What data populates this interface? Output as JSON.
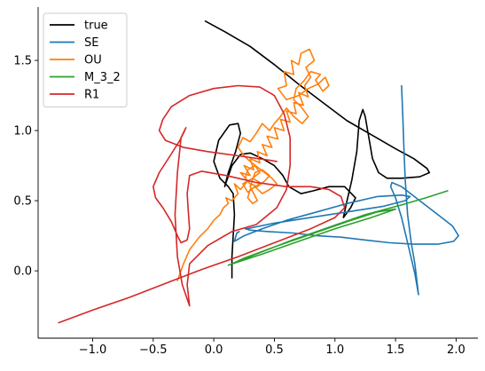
{
  "chart_data": {
    "type": "line",
    "title": "",
    "xlabel": "",
    "ylabel": "",
    "xlim": [
      -1.45,
      2.18
    ],
    "ylim": [
      -0.48,
      1.88
    ],
    "xticks": [
      -1.0,
      -0.5,
      0.0,
      0.5,
      1.0,
      1.5,
      2.0
    ],
    "xtick_labels": [
      "−1.0",
      "−0.5",
      "0.0",
      "0.5",
      "1.0",
      "1.5",
      "2.0"
    ],
    "yticks": [
      0.0,
      0.5,
      1.0,
      1.5
    ],
    "ytick_labels": [
      "0.0",
      "0.5",
      "1.0",
      "1.5"
    ],
    "grid": false,
    "legend_position": "top-left",
    "series": [
      {
        "name": "true",
        "color": "#000000",
        "points": [
          [
            -0.07,
            1.78
          ],
          [
            0.1,
            1.7
          ],
          [
            0.3,
            1.6
          ],
          [
            0.5,
            1.47
          ],
          [
            0.7,
            1.33
          ],
          [
            0.9,
            1.2
          ],
          [
            1.1,
            1.07
          ],
          [
            1.3,
            0.97
          ],
          [
            1.5,
            0.87
          ],
          [
            1.65,
            0.8
          ],
          [
            1.76,
            0.73
          ],
          [
            1.78,
            0.7
          ],
          [
            1.7,
            0.67
          ],
          [
            1.55,
            0.66
          ],
          [
            1.43,
            0.66
          ],
          [
            1.36,
            0.7
          ],
          [
            1.31,
            0.8
          ],
          [
            1.28,
            0.95
          ],
          [
            1.25,
            1.1
          ],
          [
            1.23,
            1.15
          ],
          [
            1.2,
            1.07
          ],
          [
            1.18,
            0.85
          ],
          [
            1.14,
            0.65
          ],
          [
            1.1,
            0.5
          ],
          [
            1.07,
            0.38
          ],
          [
            1.13,
            0.45
          ],
          [
            1.17,
            0.52
          ],
          [
            1.08,
            0.6
          ],
          [
            0.95,
            0.6
          ],
          [
            0.82,
            0.57
          ],
          [
            0.72,
            0.55
          ],
          [
            0.62,
            0.6
          ],
          [
            0.57,
            0.68
          ],
          [
            0.5,
            0.75
          ],
          [
            0.4,
            0.8
          ],
          [
            0.3,
            0.84
          ],
          [
            0.22,
            0.83
          ],
          [
            0.15,
            0.75
          ],
          [
            0.09,
            0.6
          ],
          [
            0.12,
            0.7
          ],
          [
            0.18,
            0.85
          ],
          [
            0.22,
            0.98
          ],
          [
            0.2,
            1.05
          ],
          [
            0.13,
            1.04
          ],
          [
            0.04,
            0.93
          ],
          [
            0.0,
            0.78
          ],
          [
            0.05,
            0.66
          ],
          [
            0.12,
            0.6
          ],
          [
            0.16,
            0.55
          ],
          [
            0.17,
            0.4
          ],
          [
            0.16,
            0.25
          ],
          [
            0.15,
            0.1
          ],
          [
            0.15,
            -0.05
          ]
        ]
      },
      {
        "name": "SE",
        "color": "#1f77b4",
        "points": [
          [
            1.55,
            1.32
          ],
          [
            1.56,
            1.1
          ],
          [
            1.57,
            0.85
          ],
          [
            1.58,
            0.65
          ],
          [
            1.6,
            0.4
          ],
          [
            1.63,
            0.2
          ],
          [
            1.66,
            0.05
          ],
          [
            1.68,
            -0.1
          ],
          [
            1.69,
            -0.17
          ],
          [
            1.66,
            -0.02
          ],
          [
            1.6,
            0.2
          ],
          [
            1.55,
            0.38
          ],
          [
            1.5,
            0.52
          ],
          [
            1.46,
            0.6
          ],
          [
            1.47,
            0.63
          ],
          [
            1.55,
            0.6
          ],
          [
            1.7,
            0.5
          ],
          [
            1.85,
            0.4
          ],
          [
            1.97,
            0.32
          ],
          [
            2.02,
            0.25
          ],
          [
            1.98,
            0.21
          ],
          [
            1.85,
            0.19
          ],
          [
            1.65,
            0.19
          ],
          [
            1.45,
            0.2
          ],
          [
            1.25,
            0.22
          ],
          [
            1.05,
            0.24
          ],
          [
            0.85,
            0.25
          ],
          [
            0.65,
            0.27
          ],
          [
            0.45,
            0.28
          ],
          [
            0.3,
            0.29
          ],
          [
            0.26,
            0.3
          ],
          [
            0.28,
            0.3
          ],
          [
            0.33,
            0.31
          ],
          [
            0.5,
            0.34
          ],
          [
            0.8,
            0.38
          ],
          [
            1.1,
            0.42
          ],
          [
            1.4,
            0.46
          ],
          [
            1.58,
            0.5
          ],
          [
            1.62,
            0.53
          ],
          [
            1.55,
            0.54
          ],
          [
            1.35,
            0.53
          ],
          [
            1.1,
            0.48
          ],
          [
            0.85,
            0.42
          ],
          [
            0.6,
            0.36
          ],
          [
            0.4,
            0.3
          ],
          [
            0.25,
            0.25
          ],
          [
            0.17,
            0.21
          ],
          [
            0.19,
            0.27
          ],
          [
            0.21,
            0.28
          ]
        ]
      },
      {
        "name": "OU",
        "color": "#ff7f0e",
        "points": [
          [
            -0.3,
            -0.07
          ],
          [
            -0.25,
            0.05
          ],
          [
            -0.2,
            0.15
          ],
          [
            -0.12,
            0.24
          ],
          [
            -0.05,
            0.3
          ],
          [
            0.0,
            0.36
          ],
          [
            0.05,
            0.4
          ],
          [
            0.08,
            0.45
          ],
          [
            0.12,
            0.48
          ],
          [
            0.1,
            0.52
          ],
          [
            0.15,
            0.5
          ],
          [
            0.2,
            0.55
          ],
          [
            0.17,
            0.62
          ],
          [
            0.22,
            0.58
          ],
          [
            0.28,
            0.64
          ],
          [
            0.22,
            0.7
          ],
          [
            0.3,
            0.68
          ],
          [
            0.25,
            0.75
          ],
          [
            0.33,
            0.72
          ],
          [
            0.3,
            0.8
          ],
          [
            0.38,
            0.77
          ],
          [
            0.36,
            0.85
          ],
          [
            0.44,
            0.82
          ],
          [
            0.4,
            0.9
          ],
          [
            0.48,
            0.88
          ],
          [
            0.44,
            0.96
          ],
          [
            0.53,
            0.94
          ],
          [
            0.5,
            1.02
          ],
          [
            0.58,
            1.0
          ],
          [
            0.55,
            1.08
          ],
          [
            0.63,
            1.06
          ],
          [
            0.6,
            1.14
          ],
          [
            0.68,
            1.12
          ],
          [
            0.66,
            1.2
          ],
          [
            0.74,
            1.18
          ],
          [
            0.7,
            1.27
          ],
          [
            0.78,
            1.24
          ],
          [
            0.75,
            1.32
          ],
          [
            0.8,
            1.38
          ],
          [
            0.76,
            1.45
          ],
          [
            0.83,
            1.5
          ],
          [
            0.79,
            1.58
          ],
          [
            0.72,
            1.55
          ],
          [
            0.7,
            1.47
          ],
          [
            0.64,
            1.5
          ],
          [
            0.66,
            1.4
          ],
          [
            0.58,
            1.42
          ],
          [
            0.6,
            1.32
          ],
          [
            0.53,
            1.3
          ],
          [
            0.6,
            1.22
          ],
          [
            0.7,
            1.25
          ],
          [
            0.78,
            1.3
          ],
          [
            0.86,
            1.33
          ],
          [
            0.92,
            1.38
          ],
          [
            0.95,
            1.32
          ],
          [
            0.9,
            1.28
          ],
          [
            0.84,
            1.36
          ],
          [
            0.88,
            1.4
          ],
          [
            0.8,
            1.42
          ],
          [
            0.74,
            1.35
          ],
          [
            0.68,
            1.3
          ],
          [
            0.66,
            1.22
          ],
          [
            0.72,
            1.17
          ],
          [
            0.78,
            1.1
          ],
          [
            0.73,
            1.05
          ],
          [
            0.66,
            1.1
          ],
          [
            0.6,
            1.16
          ],
          [
            0.55,
            1.1
          ],
          [
            0.5,
            1.05
          ],
          [
            0.46,
            1.0
          ],
          [
            0.4,
            1.05
          ],
          [
            0.35,
            0.98
          ],
          [
            0.3,
            0.92
          ],
          [
            0.24,
            0.95
          ],
          [
            0.2,
            0.88
          ],
          [
            0.25,
            0.82
          ],
          [
            0.3,
            0.78
          ],
          [
            0.36,
            0.74
          ],
          [
            0.42,
            0.7
          ],
          [
            0.48,
            0.66
          ],
          [
            0.52,
            0.62
          ],
          [
            0.46,
            0.58
          ],
          [
            0.4,
            0.55
          ],
          [
            0.34,
            0.6
          ],
          [
            0.28,
            0.56
          ],
          [
            0.24,
            0.62
          ],
          [
            0.32,
            0.66
          ],
          [
            0.38,
            0.7
          ],
          [
            0.34,
            0.75
          ],
          [
            0.28,
            0.72
          ],
          [
            0.26,
            0.66
          ],
          [
            0.3,
            0.62
          ],
          [
            0.36,
            0.6
          ],
          [
            0.42,
            0.64
          ],
          [
            0.46,
            0.68
          ],
          [
            0.4,
            0.72
          ],
          [
            0.34,
            0.7
          ],
          [
            0.3,
            0.6
          ],
          [
            0.33,
            0.55
          ],
          [
            0.36,
            0.5
          ],
          [
            0.32,
            0.48
          ],
          [
            0.28,
            0.52
          ],
          [
            0.3,
            0.58
          ],
          [
            0.35,
            0.6
          ],
          [
            0.38,
            0.63
          ],
          [
            0.32,
            0.66
          ]
        ]
      },
      {
        "name": "M_3_2",
        "color": "#2ca02c",
        "points": [
          [
            0.12,
            0.04
          ],
          [
            0.4,
            0.12
          ],
          [
            0.7,
            0.21
          ],
          [
            1.0,
            0.3
          ],
          [
            1.3,
            0.38
          ],
          [
            1.5,
            0.44
          ],
          [
            1.35,
            0.42
          ],
          [
            1.1,
            0.35
          ],
          [
            0.8,
            0.26
          ],
          [
            0.5,
            0.17
          ],
          [
            0.25,
            0.09
          ],
          [
            0.15,
            0.05
          ],
          [
            0.35,
            0.12
          ],
          [
            0.65,
            0.22
          ],
          [
            0.95,
            0.31
          ],
          [
            1.25,
            0.4
          ],
          [
            1.55,
            0.47
          ],
          [
            1.75,
            0.52
          ],
          [
            1.93,
            0.57
          ]
        ]
      },
      {
        "name": "R1",
        "color": "#d62728",
        "points": [
          [
            -1.28,
            -0.37
          ],
          [
            -1.0,
            -0.28
          ],
          [
            -0.7,
            -0.19
          ],
          [
            -0.4,
            -0.09
          ],
          [
            -0.1,
            0.01
          ],
          [
            0.2,
            0.1
          ],
          [
            0.5,
            0.2
          ],
          [
            0.8,
            0.3
          ],
          [
            1.0,
            0.38
          ],
          [
            1.08,
            0.45
          ],
          [
            1.05,
            0.53
          ],
          [
            0.95,
            0.58
          ],
          [
            0.8,
            0.6
          ],
          [
            0.6,
            0.6
          ],
          [
            0.35,
            0.63
          ],
          [
            0.1,
            0.68
          ],
          [
            -0.1,
            0.71
          ],
          [
            -0.2,
            0.68
          ],
          [
            -0.22,
            0.55
          ],
          [
            -0.21,
            0.42
          ],
          [
            -0.2,
            0.3
          ],
          [
            -0.22,
            0.22
          ],
          [
            -0.27,
            0.2
          ],
          [
            -0.3,
            0.25
          ],
          [
            -0.35,
            0.35
          ],
          [
            -0.42,
            0.45
          ],
          [
            -0.48,
            0.52
          ],
          [
            -0.5,
            0.6
          ],
          [
            -0.45,
            0.7
          ],
          [
            -0.36,
            0.82
          ],
          [
            -0.28,
            0.93
          ],
          [
            -0.24,
            1.0
          ],
          [
            -0.23,
            1.02
          ],
          [
            -0.27,
            0.95
          ],
          [
            -0.3,
            0.7
          ],
          [
            -0.32,
            0.4
          ],
          [
            -0.3,
            0.1
          ],
          [
            -0.26,
            -0.1
          ],
          [
            -0.2,
            -0.25
          ],
          [
            -0.22,
            -0.1
          ],
          [
            -0.2,
            0.05
          ],
          [
            -0.05,
            0.18
          ],
          [
            0.15,
            0.28
          ],
          [
            0.35,
            0.33
          ],
          [
            0.52,
            0.45
          ],
          [
            0.6,
            0.58
          ],
          [
            0.63,
            0.75
          ],
          [
            0.63,
            0.95
          ],
          [
            0.58,
            1.12
          ],
          [
            0.5,
            1.25
          ],
          [
            0.38,
            1.31
          ],
          [
            0.2,
            1.32
          ],
          [
            0.0,
            1.3
          ],
          [
            -0.2,
            1.25
          ],
          [
            -0.35,
            1.17
          ],
          [
            -0.42,
            1.08
          ],
          [
            -0.45,
            1.0
          ],
          [
            -0.4,
            0.93
          ],
          [
            -0.25,
            0.88
          ],
          [
            -0.05,
            0.85
          ],
          [
            0.2,
            0.82
          ],
          [
            0.45,
            0.79
          ],
          [
            0.52,
            0.78
          ]
        ]
      }
    ]
  }
}
